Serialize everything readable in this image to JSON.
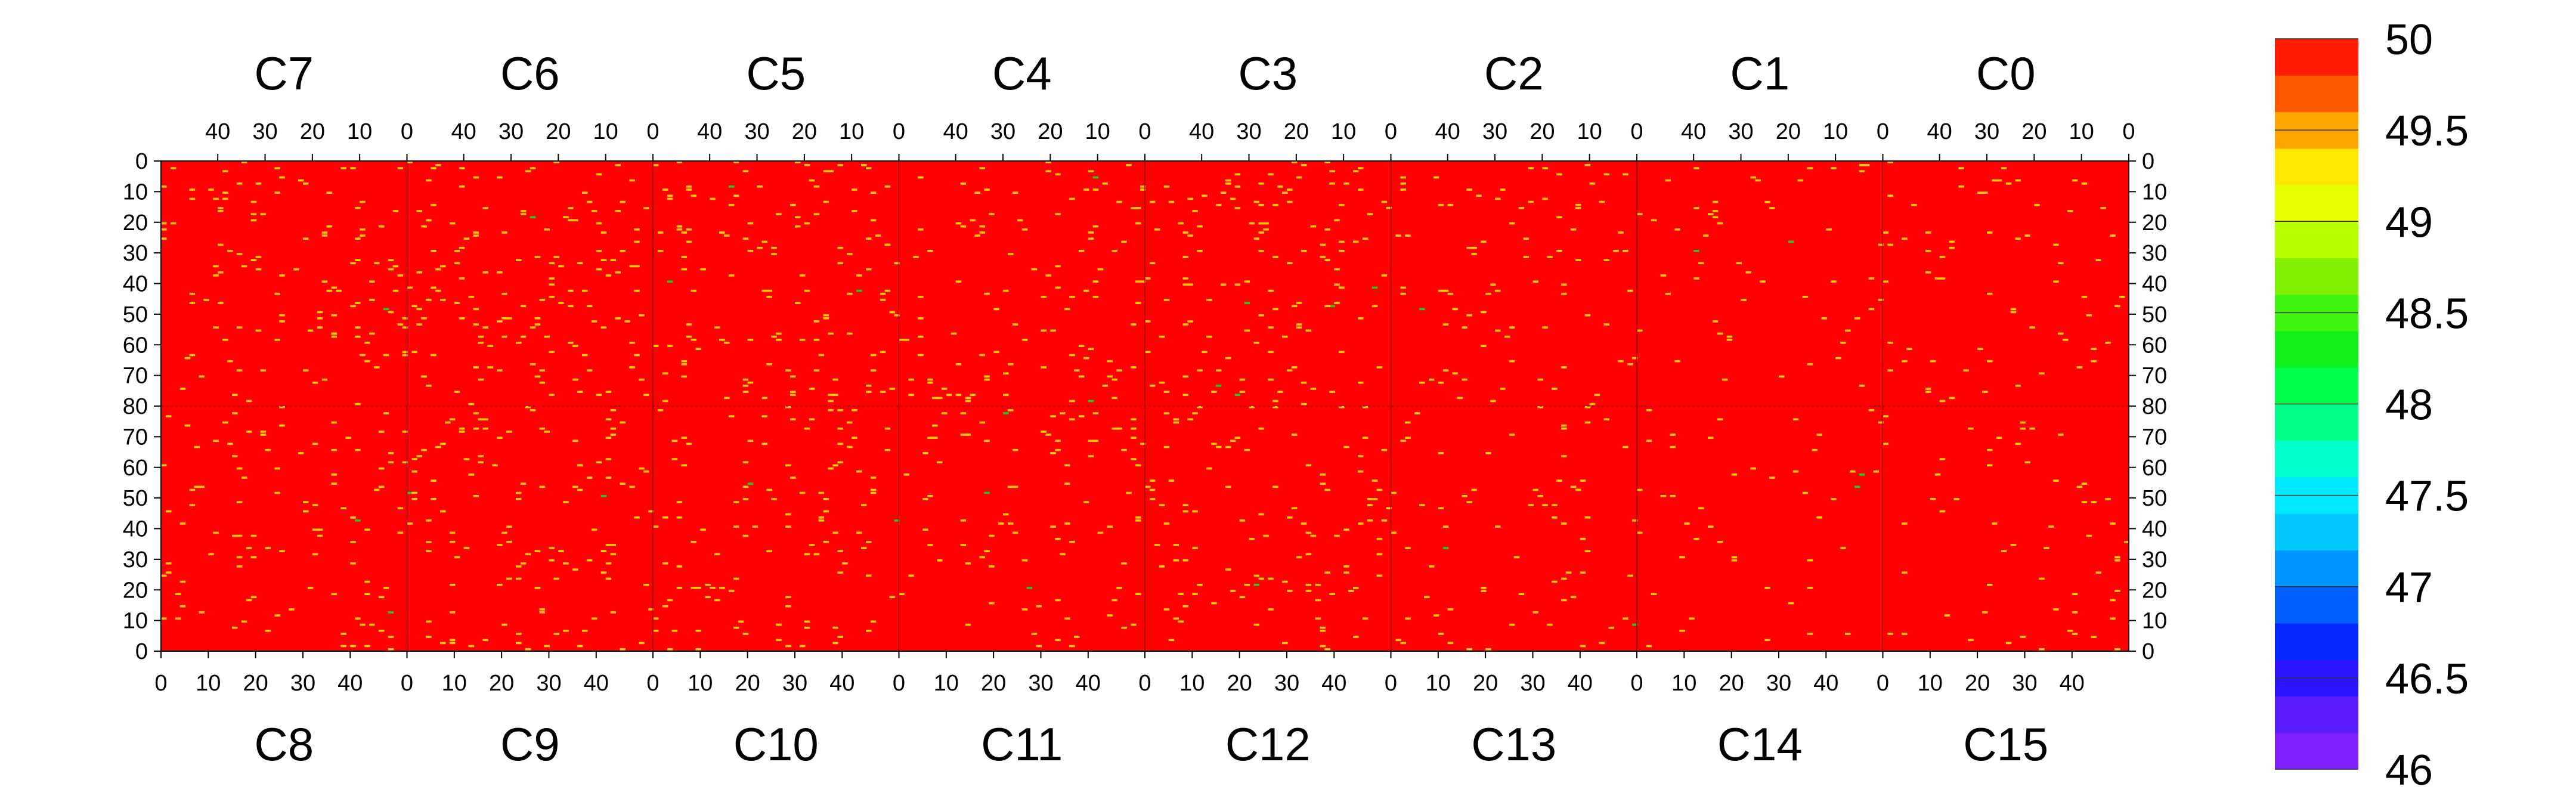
{
  "chart_data": {
    "type": "heatmap",
    "top_channels": [
      "C7",
      "C6",
      "C5",
      "C4",
      "C3",
      "C2",
      "C1",
      "C0"
    ],
    "bottom_channels": [
      "C8",
      "C9",
      "C10",
      "C11",
      "C12",
      "C13",
      "C14",
      "C15"
    ],
    "top_x_ticks": [
      40,
      30,
      20,
      10,
      0
    ],
    "bottom_x_ticks": [
      0,
      10,
      20,
      30,
      40
    ],
    "panel_x_range": [
      0,
      52
    ],
    "y_ticks": [
      0,
      10,
      20,
      30,
      40,
      50,
      60,
      70,
      80,
      70,
      60,
      50,
      40,
      30,
      20,
      10,
      0
    ],
    "y_range_per_half": [
      0,
      80
    ],
    "z_range": [
      46,
      50
    ],
    "background_value": 50,
    "colorbar": {
      "ticks": [
        50,
        49.5,
        49,
        48.5,
        48,
        47.5,
        47,
        46.5,
        46
      ],
      "levels": 20,
      "colors": [
        "#7f1fff",
        "#5a1bff",
        "#2a14ff",
        "#0028ff",
        "#0060ff",
        "#0096ff",
        "#00c8ff",
        "#00eaff",
        "#00ffcc",
        "#00ff8a",
        "#00ff4a",
        "#10f01a",
        "#40f510",
        "#80f000",
        "#b8ff00",
        "#e8ff00",
        "#ffe800",
        "#ffa500",
        "#ff5a00",
        "#ff1a00"
      ]
    },
    "sparse_point_value": 49.3,
    "colors": {
      "background": "#ff0000",
      "sparse": "#ffcc00",
      "rare": "#22cc22"
    }
  }
}
